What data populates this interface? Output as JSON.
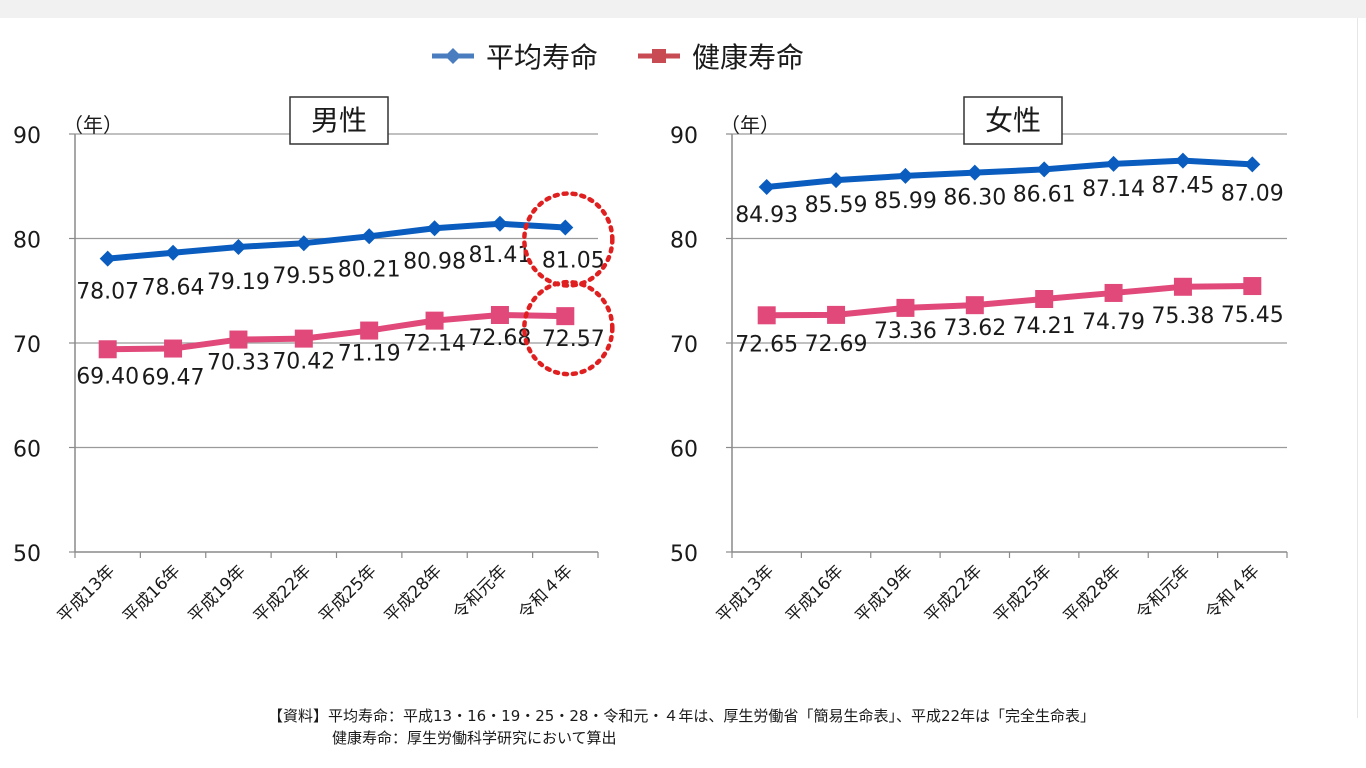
{
  "legend": {
    "avg_label": "平均寿命",
    "healthy_label": "健康寿命"
  },
  "colors": {
    "avg": "#0a5dbf",
    "avg_marker": "#0a5dbf",
    "legend_avg": "#4a7cc0",
    "healthy": "#e0497a",
    "legend_healthy": "#c84a52",
    "axis": "#8a8a8a",
    "grid": "#9a9a9a",
    "highlight": "#e02020"
  },
  "source": {
    "line1": "【資料】平均寿命：平成13・16・19・25・28・令和元・４年は、厚生労働省「簡易生命表」、平成22年は「完全生命表」",
    "line2": "健康寿命：厚生労働科学研究において算出"
  },
  "chart_data": [
    {
      "type": "line",
      "title": "男性",
      "ylabel": "（年）",
      "ylim": [
        50,
        90
      ],
      "yticks": [
        50,
        60,
        70,
        80,
        90
      ],
      "grid": true,
      "categories": [
        "平成13年",
        "平成16年",
        "平成19年",
        "平成22年",
        "平成25年",
        "平成28年",
        "令和元年",
        "令和４年"
      ],
      "series": [
        {
          "name": "平均寿命",
          "marker": "diamond",
          "values": [
            78.07,
            78.64,
            79.19,
            79.55,
            80.21,
            80.98,
            81.41,
            81.05
          ],
          "labels": [
            "78.07",
            "78.64",
            "79.19",
            "79.55",
            "80.21",
            "80.98",
            "81.41",
            "81.05"
          ]
        },
        {
          "name": "健康寿命",
          "marker": "square",
          "values": [
            69.4,
            69.47,
            70.33,
            70.42,
            71.19,
            72.14,
            72.68,
            72.57
          ],
          "labels": [
            "69.40",
            "69.47",
            "70.33",
            "70.42",
            "71.19",
            "72.14",
            "72.68",
            "72.57"
          ]
        }
      ],
      "highlighted_category": "令和４年"
    },
    {
      "type": "line",
      "title": "女性",
      "ylabel": "（年）",
      "ylim": [
        50,
        90
      ],
      "yticks": [
        50,
        60,
        70,
        80,
        90
      ],
      "grid": true,
      "categories": [
        "平成13年",
        "平成16年",
        "平成19年",
        "平成22年",
        "平成25年",
        "平成28年",
        "令和元年",
        "令和４年"
      ],
      "series": [
        {
          "name": "平均寿命",
          "marker": "diamond",
          "values": [
            84.93,
            85.59,
            85.99,
            86.3,
            86.61,
            87.14,
            87.45,
            87.09
          ],
          "labels": [
            "84.93",
            "85.59",
            "85.99",
            "86.30",
            "86.61",
            "87.14",
            "87.45",
            "87.09"
          ]
        },
        {
          "name": "健康寿命",
          "marker": "square",
          "values": [
            72.65,
            72.69,
            73.36,
            73.62,
            74.21,
            74.79,
            75.38,
            75.45
          ],
          "labels": [
            "72.65",
            "72.69",
            "73.36",
            "73.62",
            "74.21",
            "74.79",
            "75.38",
            "75.45"
          ]
        }
      ]
    }
  ]
}
